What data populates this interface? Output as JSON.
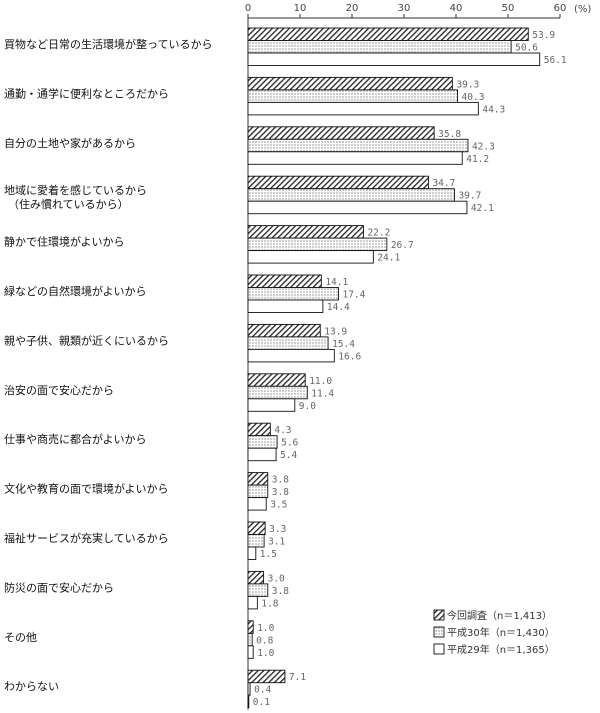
{
  "chart_data": {
    "type": "bar",
    "orientation": "horizontal",
    "unit": "(%)",
    "xlim": [
      0,
      60
    ],
    "x_ticks": [
      0,
      10,
      20,
      30,
      40,
      50,
      60
    ],
    "categories": [
      "買物など日常の生活環境が整っているから",
      "通勤・通学に便利なところだから",
      "自分の土地や家があるから",
      "地域に愛着を感じているから\n（住み慣れているから）",
      "静かで住環境がよいから",
      "緑などの自然環境がよいから",
      "親や子供、親類が近くにいるから",
      "治安の面で安心だから",
      "仕事や商売に都合がよいから",
      "文化や教育の面で環境がよいから",
      "福祉サービスが充実しているから",
      "防災の面で安心だから",
      "その他",
      "わからない"
    ],
    "series": [
      {
        "name": "今回調査",
        "n_label": "（n＝1,413）",
        "pattern": "hatch",
        "values": [
          53.9,
          39.3,
          35.8,
          34.7,
          22.2,
          14.1,
          13.9,
          11.0,
          4.3,
          3.8,
          3.3,
          3.0,
          1.0,
          7.1
        ]
      },
      {
        "name": "平成30年",
        "n_label": "（n＝1,430）",
        "pattern": "dots",
        "values": [
          50.6,
          40.3,
          42.3,
          39.7,
          26.7,
          17.4,
          15.4,
          11.4,
          5.6,
          3.8,
          3.1,
          3.8,
          0.8,
          0.4
        ]
      },
      {
        "name": "平成29年",
        "n_label": "（n＝1,365）",
        "pattern": "white",
        "values": [
          56.1,
          44.3,
          41.2,
          42.1,
          24.1,
          14.4,
          16.6,
          9.0,
          5.4,
          3.5,
          1.5,
          1.8,
          1.0,
          0.1
        ]
      }
    ],
    "legend_position": "bottom-right"
  }
}
